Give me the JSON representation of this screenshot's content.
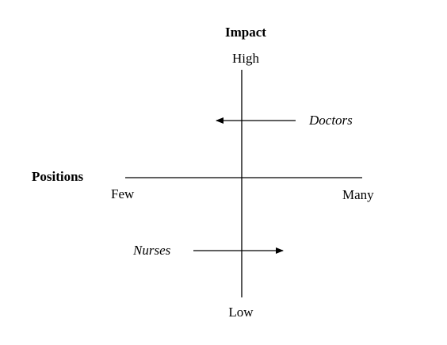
{
  "diagram": {
    "vertical_axis": {
      "title": "Impact",
      "top_label": "High",
      "bottom_label": "Low"
    },
    "horizontal_axis": {
      "title": "Positions",
      "left_label": "Few",
      "right_label": "Many"
    },
    "arrows": [
      {
        "label": "Doctors",
        "direction": "left"
      },
      {
        "label": "Nurses",
        "direction": "right"
      }
    ],
    "colors": {
      "ink": "#000000",
      "background": "#ffffff"
    }
  }
}
